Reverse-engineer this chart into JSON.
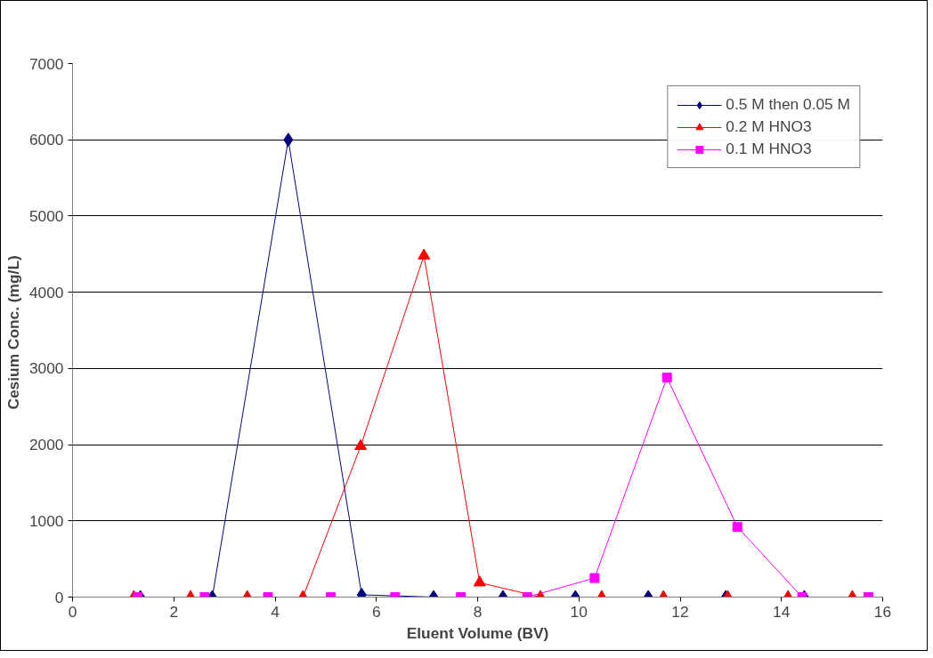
{
  "chart_data": {
    "type": "line",
    "xlabel": "Eluent Volume (BV)",
    "ylabel": "Cesium Conc.  (mg/L)",
    "xlim": [
      0,
      16
    ],
    "xticks": [
      0,
      2,
      4,
      6,
      8,
      10,
      12,
      14,
      16
    ],
    "ylim": [
      0,
      7000
    ],
    "yticks": [
      0,
      1000,
      2000,
      3000,
      4000,
      5000,
      6000,
      7000
    ],
    "grid": "y",
    "legend": "top right",
    "line_style": "solid",
    "series": [
      {
        "name": "0.5 M then 0.05 M",
        "color": "#000080",
        "marker": "diamond",
        "x": [
          1.34,
          2.76,
          4.26,
          5.71,
          7.13,
          8.5,
          9.93,
          11.37,
          12.9,
          14.45
        ],
        "values": [
          0,
          0,
          6000,
          30,
          0,
          0,
          0,
          0,
          0,
          0
        ]
      },
      {
        "name": "0.2 M HNO3",
        "color": "#ff0000",
        "marker": "triangle",
        "x": [
          1.21,
          2.33,
          3.45,
          4.55,
          5.69,
          6.94,
          8.04,
          9.24,
          10.45,
          11.67,
          12.94,
          14.13,
          15.4
        ],
        "values": [
          0,
          0,
          0,
          0,
          1980,
          4480,
          190,
          0,
          0,
          0,
          0,
          0,
          0
        ]
      },
      {
        "name": "0.1 M HNO3",
        "color": "#ff00ff",
        "marker": "square",
        "x": [
          1.29,
          2.61,
          3.86,
          5.1,
          6.37,
          7.67,
          8.98,
          10.31,
          11.74,
          13.13,
          14.41,
          15.72
        ],
        "values": [
          0,
          0,
          0,
          0,
          0,
          0,
          0,
          250,
          2880,
          920,
          0,
          0
        ]
      }
    ]
  }
}
